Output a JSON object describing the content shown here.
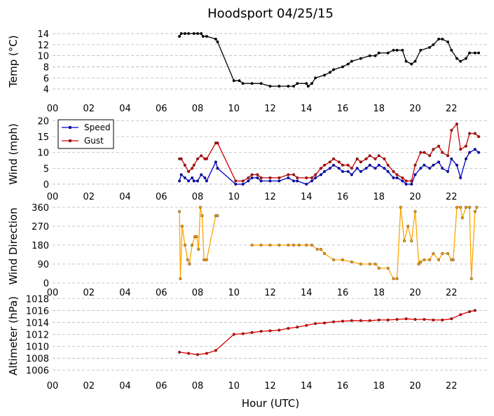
{
  "chart_data": {
    "title": "Hoodsport 04/25/15",
    "xlabel": "Hour (UTC)",
    "x_unit": "hour UTC",
    "x_range": [
      0,
      24
    ],
    "x_tick_labels": [
      "00",
      "02",
      "04",
      "06",
      "08",
      "10",
      "12",
      "14",
      "16",
      "18",
      "20",
      "22"
    ],
    "panels": [
      {
        "id": "temp",
        "type": "line",
        "ylabel": "Temp (°C)",
        "ylim": [
          3,
          15
        ],
        "yticks": [
          4,
          6,
          8,
          10,
          12,
          14
        ],
        "grid": true,
        "series": [
          {
            "color": "#000000",
            "x": [
              7.0,
              7.1,
              7.3,
              7.5,
              7.8,
              8.0,
              8.2,
              8.3,
              8.5,
              9.0,
              9.1,
              10.0,
              10.3,
              10.5,
              11.0,
              11.5,
              12.0,
              12.5,
              13.0,
              13.3,
              13.5,
              14.0,
              14.1,
              14.3,
              14.5,
              15.0,
              15.3,
              15.5,
              16.0,
              16.3,
              16.5,
              17.0,
              17.5,
              17.8,
              18.0,
              18.5,
              18.8,
              19.0,
              19.3,
              19.5,
              19.8,
              20.0,
              20.3,
              20.8,
              21.0,
              21.3,
              21.5,
              21.8,
              22.0,
              22.3,
              22.5,
              22.8,
              23.0,
              23.3,
              23.5
            ],
            "y": [
              13.5,
              14,
              14,
              14,
              14,
              14,
              14,
              13.5,
              13.5,
              13,
              12.5,
              5.5,
              5.5,
              5,
              5,
              5,
              4.5,
              4.5,
              4.5,
              4.5,
              5,
              5,
              4.5,
              5,
              6,
              6.5,
              7,
              7.5,
              8,
              8.5,
              9,
              9.5,
              10,
              10,
              10.5,
              10.5,
              11,
              11,
              11,
              9,
              8.5,
              9,
              11,
              11.5,
              12,
              13,
              13,
              12.5,
              11,
              9.5,
              9,
              9.5,
              10.5,
              10.5,
              10.5
            ]
          }
        ]
      },
      {
        "id": "wind",
        "type": "line",
        "ylabel": "Wind (mph)",
        "ylim": [
          -2,
          21
        ],
        "yticks": [
          0,
          5,
          10,
          15,
          20
        ],
        "grid": true,
        "legend": "top-left",
        "series": [
          {
            "name": "Speed",
            "color": "#0000cc",
            "x": [
              7.0,
              7.1,
              7.3,
              7.5,
              7.7,
              7.8,
              8.0,
              8.2,
              8.4,
              8.5,
              9.0,
              9.1,
              10.1,
              10.5,
              10.8,
              11.0,
              11.3,
              11.5,
              12.0,
              12.5,
              13.0,
              13.3,
              13.5,
              14.0,
              14.3,
              14.5,
              14.8,
              15.0,
              15.3,
              15.5,
              15.8,
              16.0,
              16.3,
              16.5,
              16.8,
              17.0,
              17.3,
              17.5,
              17.8,
              18.0,
              18.3,
              18.5,
              18.8,
              19.0,
              19.3,
              19.5,
              19.8,
              20.0,
              20.3,
              20.5,
              20.8,
              21.0,
              21.3,
              21.5,
              21.8,
              22.0,
              22.3,
              22.5,
              22.8,
              23.0,
              23.3,
              23.5
            ],
            "y": [
              1,
              3,
              2,
              1,
              2,
              1,
              1,
              3,
              2,
              1,
              7,
              5,
              0,
              0,
              1,
              2,
              2,
              1,
              1,
              1,
              2,
              1,
              1,
              0,
              1,
              2,
              3,
              4,
              5,
              6,
              5,
              4,
              4,
              3,
              5,
              4,
              5,
              6,
              5,
              6,
              5,
              4,
              2,
              2,
              1,
              0,
              0,
              3,
              5,
              6,
              5,
              6,
              7,
              5,
              4,
              8,
              6,
              2,
              8,
              10,
              11,
              10
            ]
          },
          {
            "name": "Gust",
            "color": "#cc0000",
            "x": [
              7.0,
              7.1,
              7.3,
              7.5,
              7.7,
              7.8,
              8.0,
              8.2,
              8.4,
              8.5,
              9.0,
              9.1,
              10.1,
              10.5,
              10.8,
              11.0,
              11.3,
              11.5,
              12.0,
              12.5,
              13.0,
              13.3,
              13.5,
              14.0,
              14.3,
              14.5,
              14.8,
              15.0,
              15.3,
              15.5,
              15.8,
              16.0,
              16.3,
              16.5,
              16.8,
              17.0,
              17.3,
              17.5,
              17.8,
              18.0,
              18.3,
              18.5,
              18.8,
              19.0,
              19.3,
              19.5,
              19.8,
              20.0,
              20.3,
              20.5,
              20.8,
              21.0,
              21.3,
              21.5,
              21.8,
              22.0,
              22.3,
              22.5,
              22.8,
              23.0,
              23.3,
              23.5
            ],
            "y": [
              8,
              8,
              6,
              4,
              5,
              6,
              8,
              9,
              8,
              8,
              13,
              13,
              1,
              1,
              2,
              3,
              3,
              2,
              2,
              2,
              3,
              3,
              2,
              2,
              2,
              3,
              5,
              6,
              7,
              8,
              7,
              6,
              6,
              5,
              8,
              7,
              8,
              9,
              8,
              9,
              8,
              6,
              4,
              3,
              2,
              1,
              1,
              6,
              10,
              10,
              9,
              11,
              12,
              10,
              9,
              17,
              19,
              11,
              12,
              16,
              16,
              15
            ]
          }
        ]
      },
      {
        "id": "direction",
        "type": "line",
        "ylabel": "Wind Direction",
        "ylim": [
          -20,
          370
        ],
        "yticks": [
          0,
          90,
          180,
          270,
          360
        ],
        "grid": true,
        "series": [
          {
            "color": "#ffa500",
            "x": [
              7.0,
              7.05,
              7.15,
              7.3,
              7.45,
              7.55,
              7.7,
              7.85,
              7.95,
              8.05,
              8.15,
              8.25,
              8.35,
              8.5,
              9.0,
              9.1,
              null,
              11.0,
              11.5,
              12.0,
              12.5,
              13.0,
              13.3,
              13.6,
              14.0,
              14.3,
              14.6,
              14.8,
              15.0,
              15.5,
              16.0,
              16.5,
              17.0,
              17.5,
              17.8,
              18.0,
              18.5,
              18.8,
              19.0,
              19.2,
              19.4,
              19.6,
              19.8,
              20.0,
              20.2,
              20.3,
              20.5,
              20.8,
              21.0,
              21.3,
              21.5,
              21.8,
              22.0,
              22.1,
              22.3,
              22.5,
              22.6,
              22.8,
              23.0,
              23.1,
              23.3,
              23.4
            ],
            "y": [
              340,
              20,
              270,
              180,
              110,
              90,
              180,
              220,
              220,
              160,
              360,
              320,
              110,
              110,
              320,
              320,
              null,
              180,
              180,
              180,
              180,
              180,
              180,
              180,
              180,
              180,
              160,
              160,
              140,
              110,
              110,
              100,
              90,
              90,
              90,
              70,
              70,
              20,
              20,
              360,
              200,
              270,
              200,
              340,
              90,
              100,
              110,
              110,
              140,
              110,
              140,
              140,
              110,
              110,
              360,
              360,
              310,
              360,
              360,
              20,
              340,
              360
            ]
          }
        ]
      },
      {
        "id": "altimeter",
        "type": "line",
        "ylabel": "Altimeter (hPa)",
        "ylim": [
          1005,
          1018.5
        ],
        "yticks": [
          1006,
          1008,
          1010,
          1012,
          1014,
          1016,
          1018
        ],
        "grid": true,
        "series": [
          {
            "color": "#dd0000",
            "x": [
              7.0,
              7.5,
              8.0,
              8.5,
              9.0,
              10.0,
              10.5,
              11.0,
              11.5,
              12.0,
              12.5,
              13.0,
              13.5,
              14.0,
              14.5,
              15.0,
              15.5,
              16.0,
              16.5,
              17.0,
              17.5,
              18.0,
              18.5,
              19.0,
              19.5,
              20.0,
              20.5,
              21.0,
              21.5,
              22.0,
              22.5,
              23.0,
              23.3
            ],
            "y": [
              1009.0,
              1008.8,
              1008.6,
              1008.8,
              1009.3,
              1012.0,
              1012.1,
              1012.3,
              1012.5,
              1012.6,
              1012.7,
              1013.0,
              1013.2,
              1013.5,
              1013.8,
              1013.9,
              1014.1,
              1014.2,
              1014.3,
              1014.3,
              1014.3,
              1014.4,
              1014.4,
              1014.5,
              1014.6,
              1014.5,
              1014.5,
              1014.4,
              1014.4,
              1014.6,
              1015.3,
              1015.8,
              1016.0
            ]
          }
        ]
      }
    ]
  }
}
